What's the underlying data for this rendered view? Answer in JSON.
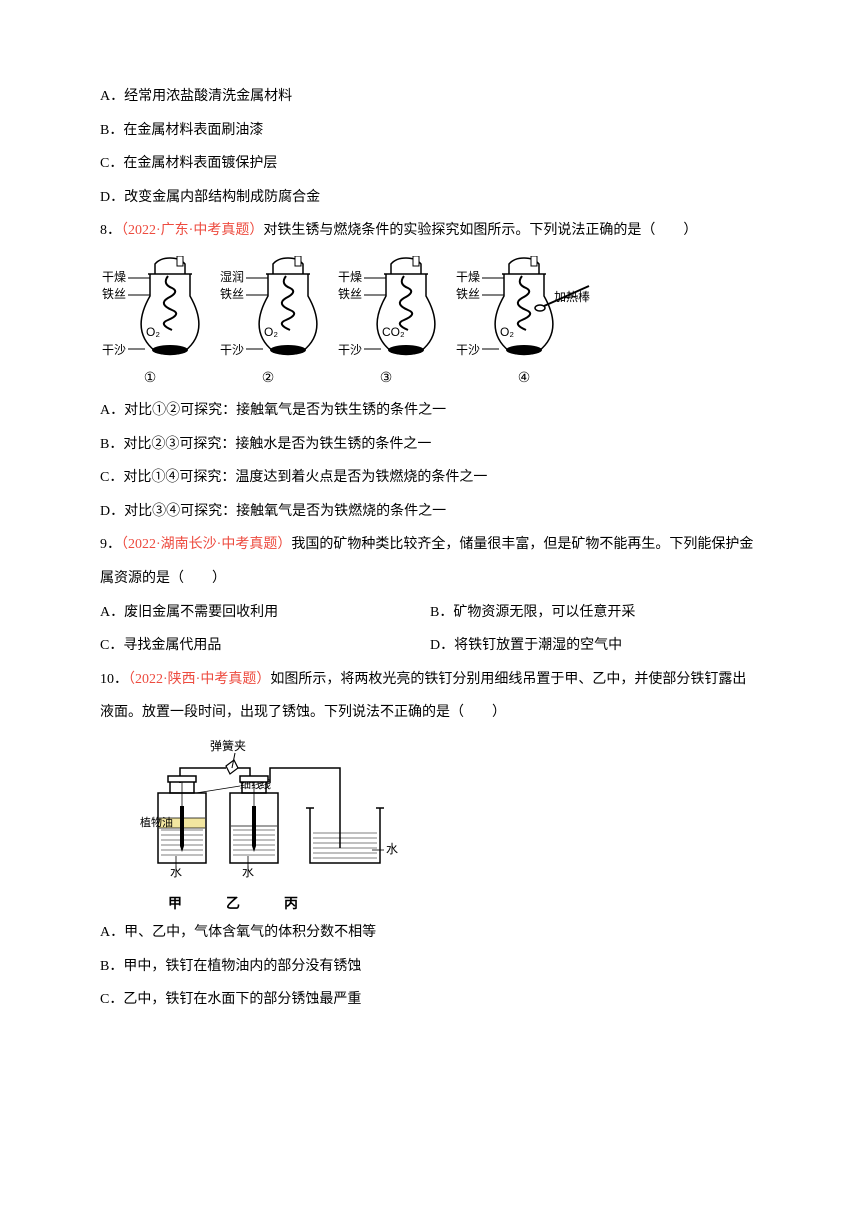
{
  "q7": {
    "optA": "A．经常用浓盐酸清洗金属材料",
    "optB": "B．在金属材料表面刷油漆",
    "optC": "C．在金属材料表面镀保护层",
    "optD": "D．改变金属内部结构制成防腐合金"
  },
  "q8": {
    "stem_prefix": "8．",
    "stem_red": "（2022·广东·中考真题）",
    "stem_rest": "对铁生锈与燃烧条件的实验探究如图所示。下列说法正确的是（　　）",
    "diagram": {
      "flasks": [
        {
          "num": "①",
          "top_label": "干燥",
          "mid_label": "铁丝",
          "gas": "O₂",
          "bottom": "干沙",
          "heater": false
        },
        {
          "num": "②",
          "top_label": "湿润",
          "mid_label": "铁丝",
          "gas": "O₂",
          "bottom": "干沙",
          "heater": false
        },
        {
          "num": "③",
          "top_label": "干燥",
          "mid_label": "铁丝",
          "gas": "CO₂",
          "bottom": "干沙",
          "heater": false
        },
        {
          "num": "④",
          "top_label": "干燥",
          "mid_label": "铁丝",
          "gas": "O₂",
          "bottom": "干沙",
          "heater": true,
          "heater_label": "加热棒"
        }
      ],
      "colors": {
        "stroke": "#000000",
        "fill": "#ffffff",
        "text": "#000000"
      }
    },
    "optA": "A．对比①②可探究：接触氧气是否为铁生锈的条件之一",
    "optB": "B．对比②③可探究：接触水是否为铁生锈的条件之一",
    "optC": "C．对比①④可探究：温度达到着火点是否为铁燃烧的条件之一",
    "optD": "D．对比③④可探究：接触氧气是否为铁燃烧的条件之一"
  },
  "q9": {
    "stem_prefix": "9．",
    "stem_red": "（2022·湖南长沙·中考真题）",
    "stem_rest1": "我国的矿物种类比较齐全，储量很丰富，但是矿物不能再生。下列能保护金",
    "stem_rest2": "属资源的是（　　）",
    "optA": "A．废旧金属不需要回收利用",
    "optB": "B．矿物资源无限，可以任意开采",
    "optC": "C．寻找金属代用品",
    "optD": "D．将铁钉放置于潮湿的空气中"
  },
  "q10": {
    "stem_prefix": "10．",
    "stem_red": "（2022·陕西·中考真题）",
    "stem_rest1": "如图所示，将两枚光亮的铁钉分别用细线吊置于甲、乙中，并使部分铁钉露出",
    "stem_rest2": "液面。放置一段时间，出现了锈蚀。下列说法不正确的是（　　）",
    "diagram": {
      "labels": {
        "clip": "弹簧夹",
        "thread": "细线",
        "oil": "植物油",
        "water": "水"
      },
      "bottles": [
        "甲",
        "乙",
        "丙"
      ],
      "colors": {
        "stroke": "#000000",
        "oil_fill": "#f2e6a0",
        "water_lines": "#000000"
      }
    },
    "optA": "A．甲、乙中，气体含氧气的体积分数不相等",
    "optB": "B．甲中，铁钉在植物油内的部分没有锈蚀",
    "optC": "C．乙中，铁钉在水面下的部分锈蚀最严重"
  }
}
